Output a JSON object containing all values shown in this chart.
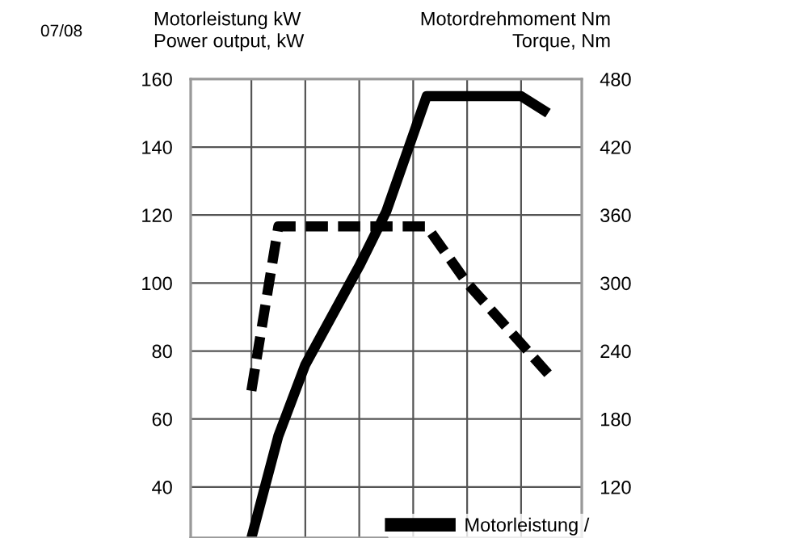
{
  "chart_data": {
    "type": "line",
    "ylabel": "Motorleistung kW\nPower output, kW",
    "y2label": "Motordrehmoment Nm\nTorque, Nm",
    "annotations": [
      "07/08"
    ],
    "categories": [
      null,
      null,
      null,
      null,
      null,
      null,
      null,
      null,
      null,
      null,
      null,
      null,
      null,
      null,
      null,
      null,
      null,
      null,
      null,
      null,
      null,
      null,
      null,
      null,
      null,
      null,
      null,
      null,
      null
    ],
    "ylim": [
      25,
      160
    ],
    "yticks": [
      40,
      60,
      80,
      100,
      120,
      140,
      160
    ],
    "y2lim": [
      75,
      480
    ],
    "y2ticks": [
      120,
      180,
      240,
      300,
      360,
      420,
      480
    ],
    "tick_labels": "y",
    "grid": true,
    "legend": "bottom right",
    "marker": "none",
    "series": [
      {
        "name": "Motorleistung /",
        "color": "#000000",
        "line_style": "solid",
        "values": [
          null,
          null,
          null,
          null,
          25,
          null,
          55,
          null,
          76,
          null,
          null,
          null,
          105,
          null,
          121,
          null,
          null,
          155,
          null,
          null,
          null,
          null,
          null,
          null,
          155,
          null,
          150,
          null,
          null
        ]
      },
      {
        "color": "#000000",
        "line_style": "dashed",
        "axis": "y2",
        "values": [
          null,
          null,
          null,
          null,
          205,
          null,
          350,
          null,
          null,
          null,
          null,
          null,
          null,
          null,
          null,
          null,
          null,
          350,
          null,
          null,
          300,
          null,
          null,
          null,
          null,
          null,
          220,
          null,
          null
        ]
      }
    ]
  }
}
